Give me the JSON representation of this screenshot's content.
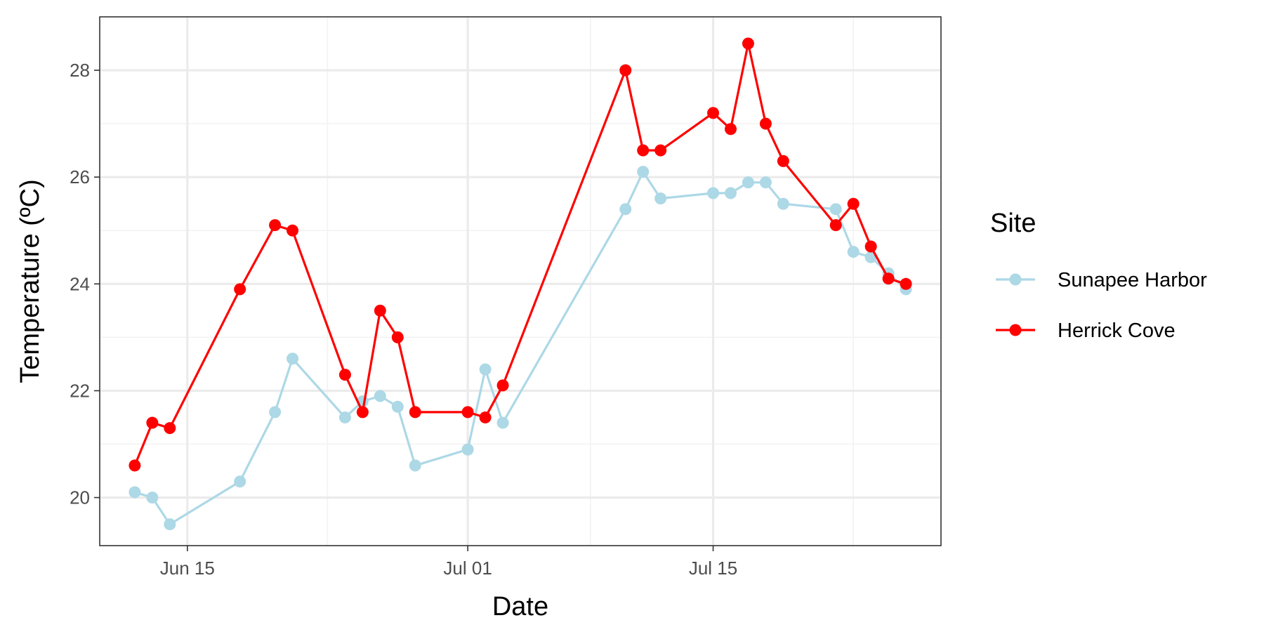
{
  "chart_data": {
    "type": "line",
    "xlabel": "Date",
    "ylabel": "Temperature (ºC)",
    "x_ticks": [
      "Jun 15",
      "Jul 01",
      "Jul 15"
    ],
    "y_ticks": [
      "20",
      "22",
      "24",
      "26",
      "28"
    ],
    "xlim": [
      "2023-06-10",
      "2023-07-28"
    ],
    "ylim": [
      19.1,
      29.0
    ],
    "grid": true,
    "legend_title": "Site",
    "legend_position": "right",
    "series": [
      {
        "name": "Sunapee Harbor",
        "color": "#add8e6",
        "points": [
          {
            "date": "2023-06-12",
            "value": 20.1
          },
          {
            "date": "2023-06-13",
            "value": 20.0
          },
          {
            "date": "2023-06-14",
            "value": 19.5
          },
          {
            "date": "2023-06-18",
            "value": 20.3
          },
          {
            "date": "2023-06-20",
            "value": 21.6
          },
          {
            "date": "2023-06-21",
            "value": 22.6
          },
          {
            "date": "2023-06-24",
            "value": 21.5
          },
          {
            "date": "2023-06-25",
            "value": 21.8
          },
          {
            "date": "2023-06-26",
            "value": 21.9
          },
          {
            "date": "2023-06-27",
            "value": 21.7
          },
          {
            "date": "2023-06-28",
            "value": 20.6
          },
          {
            "date": "2023-07-01",
            "value": 20.9
          },
          {
            "date": "2023-07-02",
            "value": 22.4
          },
          {
            "date": "2023-07-03",
            "value": 21.4
          },
          {
            "date": "2023-07-10",
            "value": 25.4
          },
          {
            "date": "2023-07-11",
            "value": 26.1
          },
          {
            "date": "2023-07-12",
            "value": 25.6
          },
          {
            "date": "2023-07-15",
            "value": 25.7
          },
          {
            "date": "2023-07-16",
            "value": 25.7
          },
          {
            "date": "2023-07-17",
            "value": 25.9
          },
          {
            "date": "2023-07-18",
            "value": 25.9
          },
          {
            "date": "2023-07-19",
            "value": 25.5
          },
          {
            "date": "2023-07-22",
            "value": 25.4
          },
          {
            "date": "2023-07-23",
            "value": 24.6
          },
          {
            "date": "2023-07-24",
            "value": 24.5
          },
          {
            "date": "2023-07-25",
            "value": 24.2
          },
          {
            "date": "2023-07-26",
            "value": 23.9
          }
        ]
      },
      {
        "name": "Herrick Cove",
        "color": "#ff0000",
        "points": [
          {
            "date": "2023-06-12",
            "value": 20.6
          },
          {
            "date": "2023-06-13",
            "value": 21.4
          },
          {
            "date": "2023-06-14",
            "value": 21.3
          },
          {
            "date": "2023-06-18",
            "value": 23.9
          },
          {
            "date": "2023-06-20",
            "value": 25.1
          },
          {
            "date": "2023-06-21",
            "value": 25.0
          },
          {
            "date": "2023-06-24",
            "value": 22.3
          },
          {
            "date": "2023-06-25",
            "value": 21.6
          },
          {
            "date": "2023-06-26",
            "value": 23.5
          },
          {
            "date": "2023-06-27",
            "value": 23.0
          },
          {
            "date": "2023-06-28",
            "value": 21.6
          },
          {
            "date": "2023-07-01",
            "value": 21.6
          },
          {
            "date": "2023-07-02",
            "value": 21.5
          },
          {
            "date": "2023-07-03",
            "value": 22.1
          },
          {
            "date": "2023-07-10",
            "value": 28.0
          },
          {
            "date": "2023-07-11",
            "value": 26.5
          },
          {
            "date": "2023-07-12",
            "value": 26.5
          },
          {
            "date": "2023-07-15",
            "value": 27.2
          },
          {
            "date": "2023-07-16",
            "value": 26.9
          },
          {
            "date": "2023-07-17",
            "value": 28.5
          },
          {
            "date": "2023-07-18",
            "value": 27.0
          },
          {
            "date": "2023-07-19",
            "value": 26.3
          },
          {
            "date": "2023-07-22",
            "value": 25.1
          },
          {
            "date": "2023-07-23",
            "value": 25.5
          },
          {
            "date": "2023-07-24",
            "value": 24.7
          },
          {
            "date": "2023-07-25",
            "value": 24.1
          },
          {
            "date": "2023-07-26",
            "value": 24.0
          }
        ]
      }
    ]
  }
}
